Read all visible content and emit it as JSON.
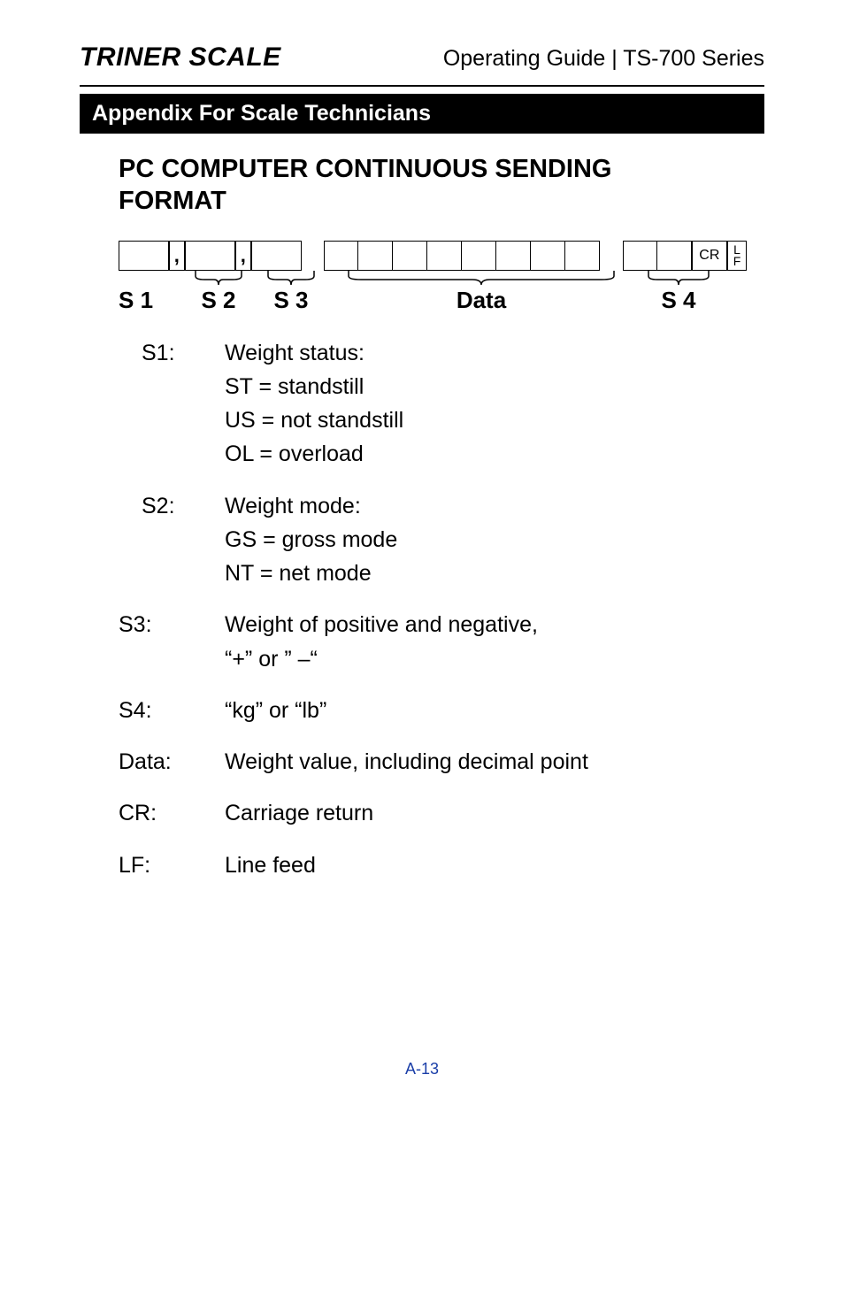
{
  "header": {
    "brand": "TRINER SCALE",
    "guide": "Operating Guide | TS-700 Series"
  },
  "appendix_bar": "Appendix For Scale Technicians",
  "section_title_line1": "PC COMPUTER CONTINUOUS SENDING",
  "section_title_line2": "FORMAT",
  "frame": {
    "comma": ",",
    "cr": "CR",
    "lf_top": "L",
    "lf_bot": "F"
  },
  "labels": {
    "s1": "S 1",
    "s2": "S 2",
    "s3": "S 3",
    "data": "Data",
    "s4": "S 4"
  },
  "defs": [
    {
      "key": "S1:",
      "indent": true,
      "lines": [
        "Weight status:",
        "ST = standstill",
        "US = not standstill",
        "OL = overload"
      ]
    },
    {
      "key": "S2:",
      "indent": true,
      "lines": [
        "Weight mode:",
        "GS = gross mode",
        "NT = net mode"
      ]
    },
    {
      "key": "S3:",
      "indent": false,
      "lines": [
        "Weight of positive and negative,",
        "“+” or ” –“"
      ]
    },
    {
      "key": "S4:",
      "indent": false,
      "lines": [
        "“kg” or “lb”"
      ]
    },
    {
      "key": "Data:",
      "indent": false,
      "lines": [
        "Weight value, including decimal point"
      ]
    },
    {
      "key": "CR:",
      "indent": false,
      "lines": [
        "Carriage return"
      ]
    },
    {
      "key": "LF:",
      "indent": false,
      "lines": [
        "Line feed"
      ]
    }
  ],
  "footer": "A-13"
}
